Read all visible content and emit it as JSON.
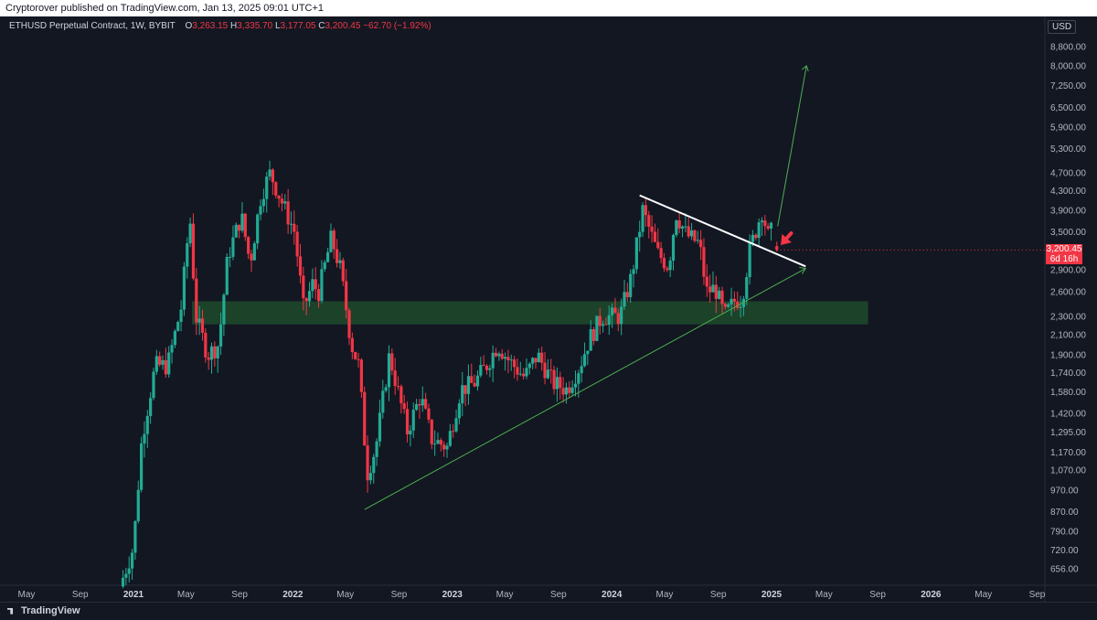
{
  "header": {
    "published": "Cryptorover published on TradingView.com, Jan 13, 2025 09:01 UTC+1"
  },
  "legend": {
    "symbol": "ETHUSD Perpetual Contract, 1W, BYBIT",
    "open_label": "O",
    "open": "3,263.15",
    "high_label": "H",
    "high": "3,335.70",
    "low_label": "L",
    "low": "3,177.05",
    "close_label": "C",
    "close": "3,200.45",
    "change": "−62.70 (−1.92%)"
  },
  "price_axis": {
    "currency": "USD",
    "last_price": "3,200.45",
    "countdown": "6d 16h"
  },
  "footer": {
    "brand": "TradingView"
  },
  "colors": {
    "background": "#131722",
    "up": "#22ab94",
    "down": "#f23645",
    "support_zone": "#1f4a2c",
    "trendline_up": "#4caf50",
    "resistance": "#ffffff",
    "arrow": "#f23645"
  },
  "chart_data": {
    "type": "candlestick",
    "scale": "log",
    "interval": "1W",
    "y_ticks": [
      656,
      720,
      790,
      870,
      970,
      1070,
      1170,
      1295,
      1420,
      1580,
      1740,
      1900,
      2100,
      2300,
      2600,
      2900,
      3500,
      3900,
      4300,
      4700,
      5300,
      5900,
      6500,
      7250,
      8000,
      8800
    ],
    "y_tick_labels": [
      "656.00",
      "720.00",
      "790.00",
      "870.00",
      "970.00",
      "1,070.00",
      "1,170.00",
      "1,295.00",
      "1,420.00",
      "1,580.00",
      "1,740.00",
      "1,900.00",
      "2,100.00",
      "2,300.00",
      "2,600.00",
      "2,900.00",
      "3,500.00",
      "3,900.00",
      "4,300.00",
      "4,700.00",
      "5,300.00",
      "5,900.00",
      "6,500.00",
      "7,250.00",
      "8,000.00",
      "8,800.00"
    ],
    "x_ticks": [
      {
        "date": "2020-05-01",
        "label": "May"
      },
      {
        "date": "2020-09-01",
        "label": "Sep"
      },
      {
        "date": "2021-01-01",
        "label": "2021",
        "bold": true
      },
      {
        "date": "2021-05-01",
        "label": "May"
      },
      {
        "date": "2021-09-01",
        "label": "Sep"
      },
      {
        "date": "2022-01-01",
        "label": "2022",
        "bold": true
      },
      {
        "date": "2022-05-01",
        "label": "May"
      },
      {
        "date": "2022-09-01",
        "label": "Sep"
      },
      {
        "date": "2023-01-01",
        "label": "2023",
        "bold": true
      },
      {
        "date": "2023-05-01",
        "label": "May"
      },
      {
        "date": "2023-09-01",
        "label": "Sep"
      },
      {
        "date": "2024-01-01",
        "label": "2024",
        "bold": true
      },
      {
        "date": "2024-05-01",
        "label": "May"
      },
      {
        "date": "2024-09-01",
        "label": "Sep"
      },
      {
        "date": "2025-01-01",
        "label": "2025",
        "bold": true
      },
      {
        "date": "2025-05-01",
        "label": "May"
      },
      {
        "date": "2025-09-01",
        "label": "Sep"
      },
      {
        "date": "2026-01-01",
        "label": "2026",
        "bold": true
      },
      {
        "date": "2026-05-01",
        "label": "May"
      },
      {
        "date": "2026-09-01",
        "label": "Sep"
      }
    ],
    "price_path": [
      [
        "2020-12-01",
        600
      ],
      [
        "2021-01-01",
        730
      ],
      [
        "2021-01-20",
        1250
      ],
      [
        "2021-02-20",
        1800
      ],
      [
        "2021-03-20",
        1800
      ],
      [
        "2021-04-20",
        2400
      ],
      [
        "2021-05-10",
        3800
      ],
      [
        "2021-05-24",
        2300
      ],
      [
        "2021-06-20",
        1900
      ],
      [
        "2021-07-15",
        2000
      ],
      [
        "2021-08-05",
        3100
      ],
      [
        "2021-09-05",
        3800
      ],
      [
        "2021-09-25",
        3000
      ],
      [
        "2021-10-20",
        4200
      ],
      [
        "2021-11-10",
        4700
      ],
      [
        "2021-12-05",
        4100
      ],
      [
        "2022-01-05",
        3500
      ],
      [
        "2022-01-25",
        2400
      ],
      [
        "2022-02-15",
        2700
      ],
      [
        "2022-03-01",
        2600
      ],
      [
        "2022-03-30",
        3400
      ],
      [
        "2022-04-20",
        2900
      ],
      [
        "2022-05-15",
        2000
      ],
      [
        "2022-06-01",
        1800
      ],
      [
        "2022-06-20",
        1050
      ],
      [
        "2022-07-10",
        1200
      ],
      [
        "2022-08-10",
        1900
      ],
      [
        "2022-09-20",
        1300
      ],
      [
        "2022-10-20",
        1550
      ],
      [
        "2022-11-15",
        1250
      ],
      [
        "2022-12-20",
        1200
      ],
      [
        "2023-01-20",
        1600
      ],
      [
        "2023-02-20",
        1650
      ],
      [
        "2023-03-20",
        1800
      ],
      [
        "2023-04-15",
        2000
      ],
      [
        "2023-05-10",
        1850
      ],
      [
        "2023-06-15",
        1700
      ],
      [
        "2023-07-15",
        1900
      ],
      [
        "2023-08-20",
        1650
      ],
      [
        "2023-09-20",
        1600
      ],
      [
        "2023-10-20",
        1800
      ],
      [
        "2023-11-10",
        2050
      ],
      [
        "2023-12-10",
        2300
      ],
      [
        "2024-01-20",
        2300
      ],
      [
        "2024-02-15",
        2800
      ],
      [
        "2024-03-12",
        3900
      ],
      [
        "2024-04-15",
        3150
      ],
      [
        "2024-05-10",
        2950
      ],
      [
        "2024-05-27",
        3850
      ],
      [
        "2024-06-20",
        3450
      ],
      [
        "2024-07-20",
        3300
      ],
      [
        "2024-08-05",
        2600
      ],
      [
        "2024-08-25",
        2650
      ],
      [
        "2024-09-15",
        2300
      ],
      [
        "2024-10-10",
        2500
      ],
      [
        "2024-10-25",
        2500
      ],
      [
        "2024-11-12",
        3200
      ],
      [
        "2024-12-10",
        3900
      ],
      [
        "2024-12-25",
        3400
      ],
      [
        "2025-01-06",
        3600
      ],
      [
        "2025-01-13",
        3200
      ]
    ],
    "last_candle": {
      "date": "2025-01-13",
      "open": 3263.15,
      "high": 3335.7,
      "low": 3177.05,
      "close": 3200.45
    },
    "annotations": {
      "support_zone": {
        "from": "2021-05-15",
        "to": "2025-08-10",
        "low": 2210,
        "high": 2480
      },
      "rising_trendline": {
        "x1": "2022-06-14",
        "y1": 880,
        "x2": "2025-03-20",
        "y2": 2920
      },
      "resistance_line": {
        "x1": "2024-03-05",
        "y1": 4200,
        "x2": "2025-03-20",
        "y2": 2950
      },
      "target_arrow": {
        "x1": "2025-01-15",
        "y1": 3600,
        "x2": "2025-03-22",
        "y2": 8000
      },
      "pointer_arrow": {
        "x1": "2025-02-15",
        "y1": 3480,
        "x2": "2025-01-22",
        "y2": 3280
      }
    }
  }
}
